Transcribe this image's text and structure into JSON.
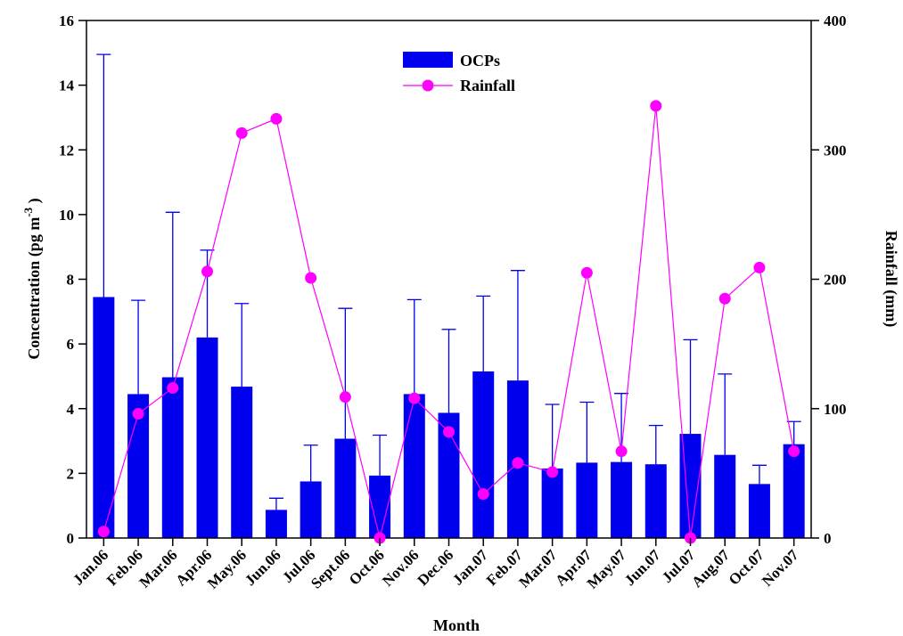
{
  "chart_data": {
    "type": "bar",
    "title": "",
    "xlabel": "Month",
    "ylabel": "Concentration (pg m",
    "ylabel_superscript": "-3",
    "ylabel_suffix": " )",
    "y2label": "Rainfall (mm)",
    "ylim": [
      0,
      16
    ],
    "y2lim": [
      0,
      400
    ],
    "yticks": [
      0,
      2,
      4,
      6,
      8,
      10,
      12,
      14,
      16
    ],
    "y2ticks": [
      0,
      100,
      200,
      300,
      400
    ],
    "grid": false,
    "legend": "top-center",
    "categories": [
      "Jan.06",
      "Feb.06",
      "Mar.06",
      "Apr.06",
      "May.06",
      "Jun.06",
      "Jul.06",
      "Sept.06",
      "Oct.06",
      "Nov.06",
      "Dec.06",
      "Jan.07",
      "Feb.07",
      "Mar.07",
      "Apr.07",
      "May.07",
      "Jun.07",
      "Jul.07",
      "Aug.07",
      "Oct.07",
      "Nov.07"
    ],
    "series": [
      {
        "name": "OCPs",
        "type": "bar",
        "axis": "left",
        "color": "#0000ee",
        "values": [
          7.45,
          4.45,
          4.97,
          6.2,
          4.68,
          0.87,
          1.75,
          3.07,
          1.93,
          4.45,
          3.87,
          5.15,
          4.87,
          2.15,
          2.33,
          2.35,
          2.28,
          3.22,
          2.57,
          1.67,
          2.9
        ],
        "error_upper": [
          14.95,
          7.35,
          10.07,
          8.9,
          7.25,
          1.23,
          2.87,
          7.1,
          3.18,
          7.37,
          6.45,
          7.48,
          8.27,
          4.13,
          4.2,
          4.47,
          3.48,
          6.13,
          5.07,
          2.25,
          3.6
        ]
      },
      {
        "name": "Rainfall",
        "type": "line",
        "axis": "right",
        "color": "#ff00ff",
        "values": [
          5,
          96,
          116,
          206,
          313,
          324,
          201,
          109,
          0,
          108,
          82,
          34,
          58,
          51,
          205,
          67,
          334,
          0,
          185,
          209,
          67
        ]
      }
    ]
  }
}
